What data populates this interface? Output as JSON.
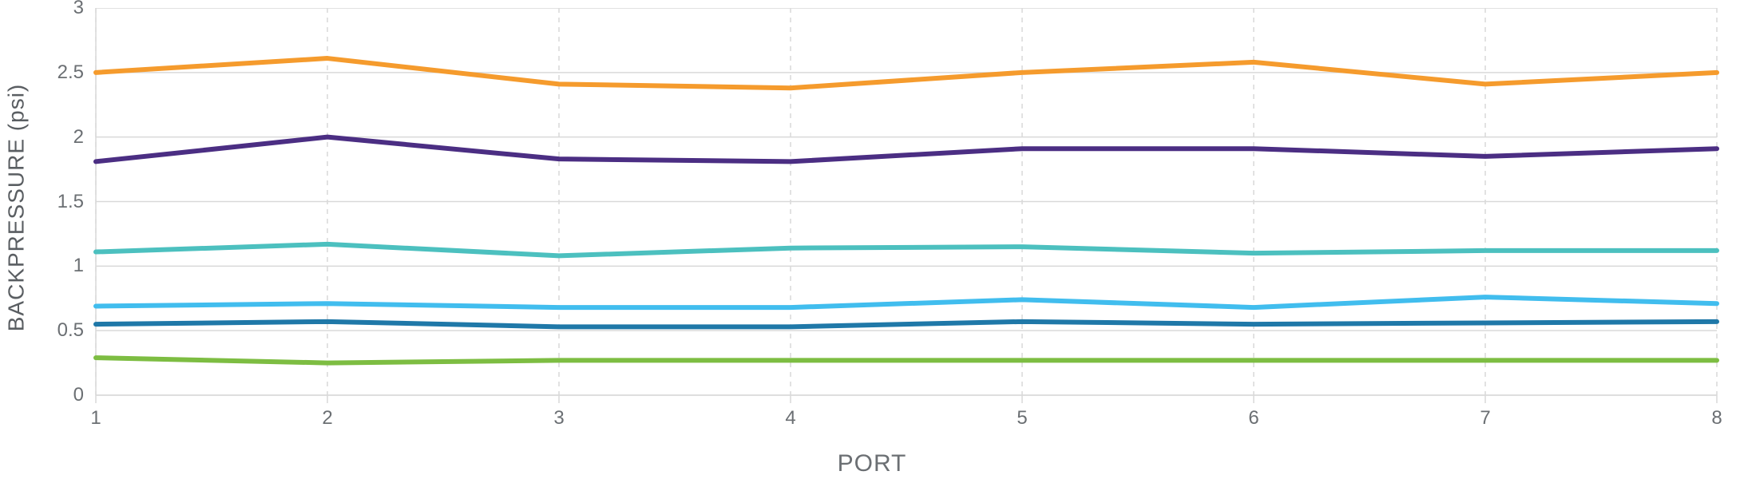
{
  "chart": {
    "type": "line",
    "y_axis_title": "BACKPRESSURE (psi)",
    "x_axis_title": "PORT",
    "background_color": "#ffffff",
    "axis_color": "#d9d9d9",
    "grid_color": "#d9d9d9",
    "grid_dash": "6,6",
    "tick_label_color": "#6b6f73",
    "title_color": "#5a5e62",
    "title_fontsize": 28,
    "tick_fontsize": 24,
    "line_width": 6,
    "x_categories": [
      "1",
      "2",
      "3",
      "4",
      "5",
      "6",
      "7",
      "8"
    ],
    "y_ticks": [
      0,
      0.5,
      1,
      1.5,
      2,
      2.5,
      3
    ],
    "ylim": [
      0,
      3
    ],
    "series": [
      {
        "name": "series-orange",
        "color": "#f59b2d",
        "values": [
          2.5,
          2.61,
          2.41,
          2.38,
          2.5,
          2.58,
          2.41,
          2.5
        ]
      },
      {
        "name": "series-purple",
        "color": "#4b2e83",
        "values": [
          1.81,
          2.0,
          1.83,
          1.81,
          1.91,
          1.91,
          1.85,
          1.91
        ]
      },
      {
        "name": "series-teal",
        "color": "#4cc0bf",
        "values": [
          1.11,
          1.17,
          1.08,
          1.14,
          1.15,
          1.1,
          1.12,
          1.12
        ]
      },
      {
        "name": "series-sky",
        "color": "#41bdee",
        "values": [
          0.69,
          0.71,
          0.68,
          0.68,
          0.74,
          0.68,
          0.76,
          0.71
        ]
      },
      {
        "name": "series-blue",
        "color": "#1f78a8",
        "values": [
          0.55,
          0.57,
          0.53,
          0.53,
          0.57,
          0.55,
          0.56,
          0.57
        ]
      },
      {
        "name": "series-green",
        "color": "#7dbd42",
        "values": [
          0.29,
          0.25,
          0.27,
          0.27,
          0.27,
          0.27,
          0.27,
          0.27
        ]
      }
    ]
  }
}
